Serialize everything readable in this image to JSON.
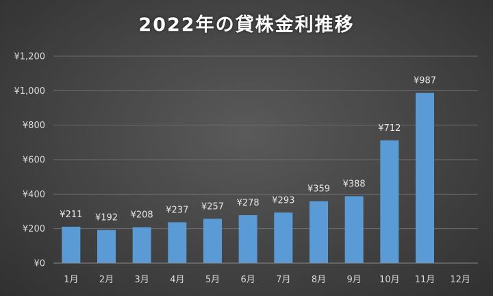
{
  "chart_data": {
    "type": "bar",
    "title": "2022年の貸株金利推移",
    "categories": [
      "1月",
      "2月",
      "3月",
      "4月",
      "5月",
      "6月",
      "7月",
      "8月",
      "9月",
      "10月",
      "11月",
      "12月"
    ],
    "values": [
      211,
      192,
      208,
      237,
      257,
      278,
      293,
      359,
      388,
      712,
      987,
      null
    ],
    "data_labels": [
      "¥211",
      "¥192",
      "¥208",
      "¥237",
      "¥257",
      "¥278",
      "¥293",
      "¥359",
      "¥388",
      "¥712",
      "¥987",
      ""
    ],
    "y_ticks": [
      "¥0",
      "¥200",
      "¥400",
      "¥600",
      "¥800",
      "¥1,000",
      "¥1,200"
    ],
    "y_tick_values": [
      0,
      200,
      400,
      600,
      800,
      1000,
      1200
    ],
    "ylim": [
      0,
      1200
    ],
    "grid": true,
    "legend": "none",
    "bar_color": "#5b9bd5"
  }
}
